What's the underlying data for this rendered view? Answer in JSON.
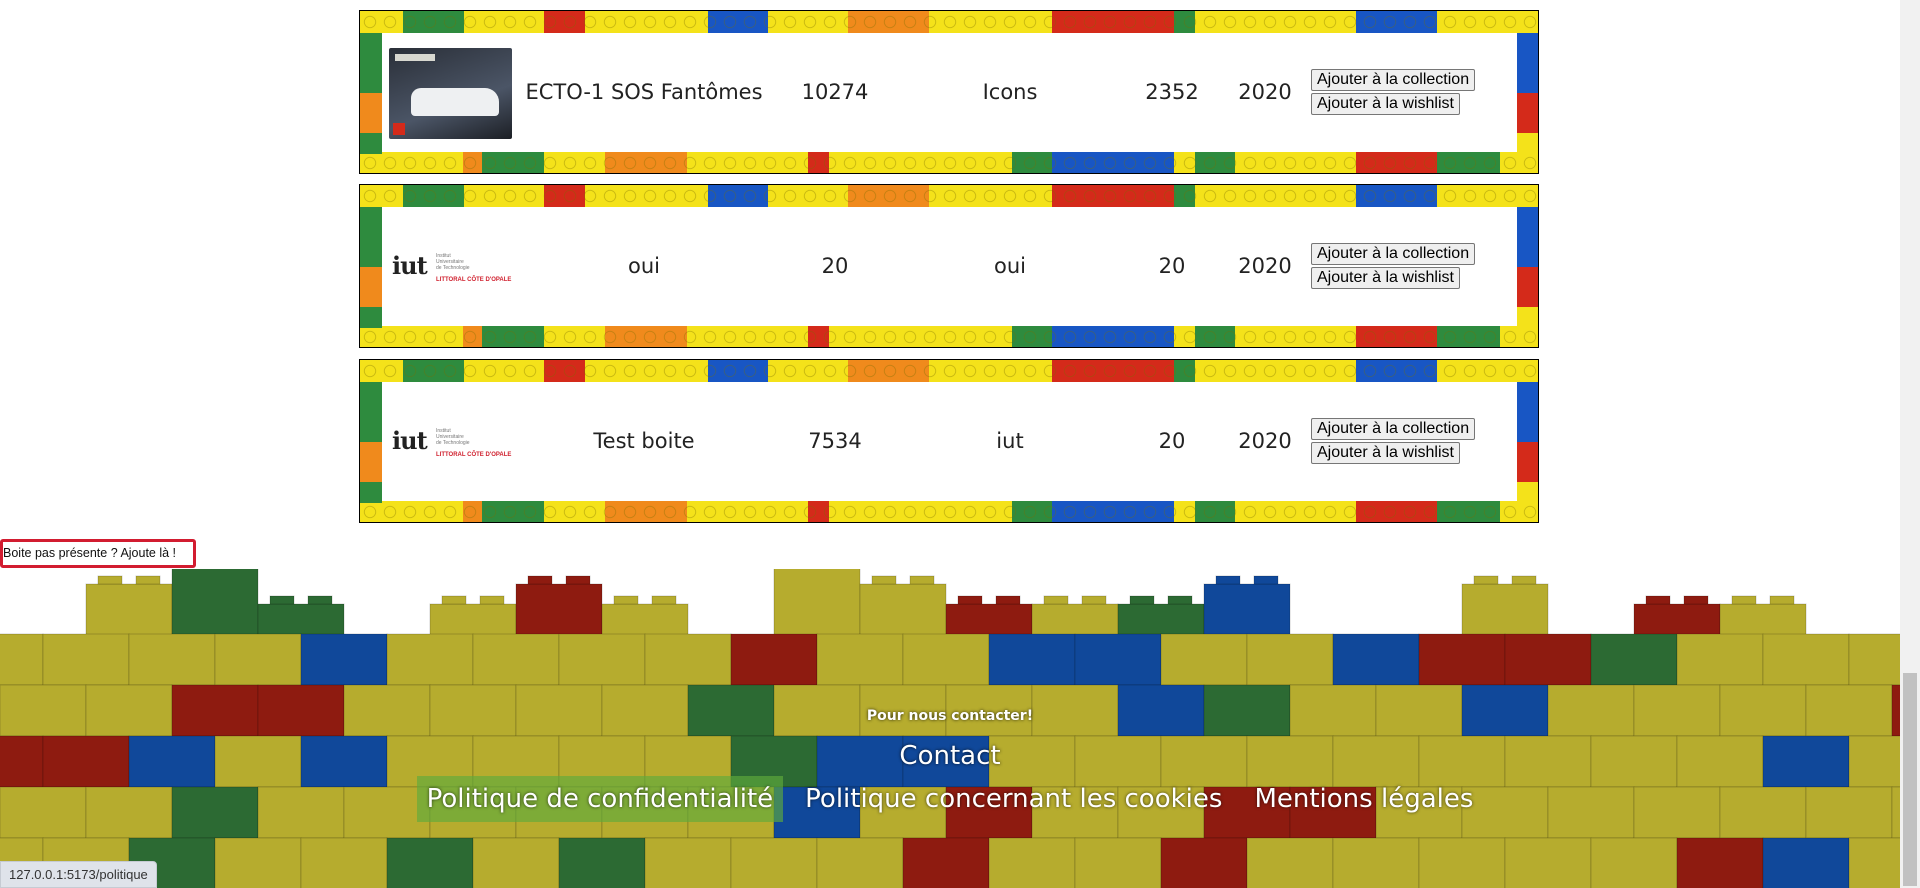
{
  "cards": [
    {
      "name": "ECTO-1 SOS Fantômes",
      "number": "10274",
      "theme": "Icons",
      "pieces": "2352",
      "year": "2020",
      "buttons": [
        "Ajouter à la collection",
        "Ajouter à la wishlist"
      ]
    },
    {
      "logo": {
        "mark": "iut",
        "lines": [
          "Institut",
          "Universitaire",
          "de Technologie"
        ],
        "tagline": "LITTORAL CÔTE D'OPALE"
      },
      "name": "oui",
      "number": "20",
      "theme": "oui",
      "pieces": "20",
      "year": "2020",
      "buttons": [
        "Ajouter à la collection",
        "Ajouter à la wishlist"
      ]
    },
    {
      "logo": {
        "mark": "iut",
        "lines": [
          "Institut",
          "Universitaire",
          "de Technologie"
        ],
        "tagline": "LITTORAL CÔTE D'OPALE"
      },
      "name": "Test boite",
      "number": "7534",
      "theme": "iut",
      "pieces": "20",
      "year": "2020",
      "buttons": [
        "Ajouter à la collection",
        "Ajouter à la wishlist"
      ]
    }
  ],
  "add_link": "Boite pas présente ? Ajoute là !",
  "footer": {
    "heading": "Pour nous contacter!",
    "contact": "Contact",
    "links": [
      "Politique de confidentialité",
      "Politique concernant les cookies",
      "Mentions légales"
    ]
  },
  "status_bar": "127.0.0.1:5173/politique"
}
